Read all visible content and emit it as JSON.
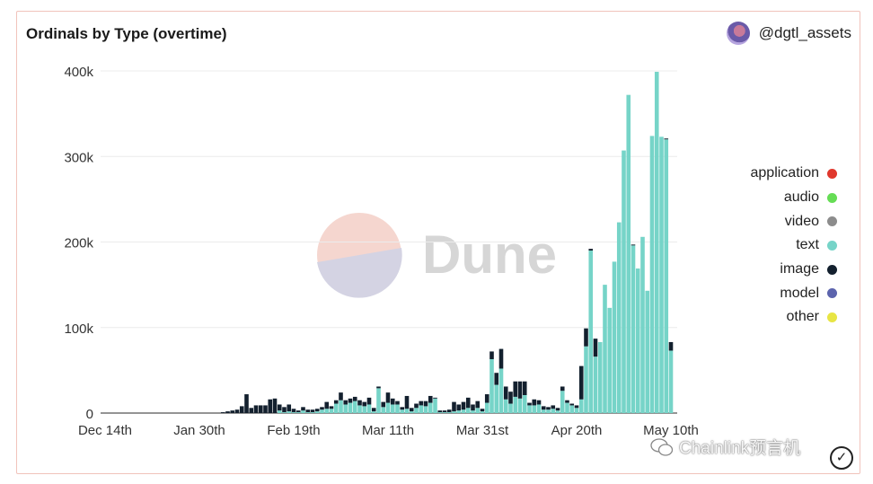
{
  "header": {
    "title": "Ordinals by Type (overtime)",
    "author": "@dgtl_assets"
  },
  "watermark": {
    "dune": "Dune",
    "source": "Chainlink预言机"
  },
  "colors": {
    "application": "#e0382d",
    "audio": "#66dd55",
    "video": "#8c8c8c",
    "text": "#76d4c8",
    "image": "#13202e",
    "model": "#5c64ad",
    "other": "#e8e544",
    "border": "#f1c3bb"
  },
  "chart_data": {
    "type": "bar",
    "stacked": true,
    "title": "Ordinals by Type (overtime)",
    "ylim": [
      0,
      400000
    ],
    "yticks": [
      {
        "value": 0,
        "label": "0"
      },
      {
        "value": 100000,
        "label": "100k"
      },
      {
        "value": 200000,
        "label": "200k"
      },
      {
        "value": 300000,
        "label": "300k"
      },
      {
        "value": 400000,
        "label": "400k"
      }
    ],
    "xticks": [
      {
        "index": 0,
        "label": "Dec 14th"
      },
      {
        "index": 20,
        "label": "Jan 30th"
      },
      {
        "index": 40,
        "label": "Feb 19th"
      },
      {
        "index": 60,
        "label": "Mar 11th"
      },
      {
        "index": 80,
        "label": "Mar 31st"
      },
      {
        "index": 100,
        "label": "Apr 20th"
      },
      {
        "index": 120,
        "label": "May 10th"
      }
    ],
    "legend": {
      "position": "right",
      "entries": [
        "application",
        "audio",
        "video",
        "text",
        "image",
        "model",
        "other"
      ]
    },
    "units": "thousands",
    "series": [
      {
        "name": "text",
        "values": [
          0,
          0,
          0,
          0,
          0,
          0,
          0,
          0,
          0,
          0,
          0,
          0,
          0,
          0,
          0,
          0,
          0,
          0,
          0,
          0,
          0,
          0,
          0,
          0,
          0,
          0,
          0,
          0,
          0,
          0,
          0,
          0,
          0,
          0,
          0,
          0,
          0,
          3,
          1,
          2,
          1,
          1,
          3,
          1,
          1,
          2,
          4,
          5,
          5,
          11,
          15,
          10,
          12,
          14,
          9,
          8,
          10,
          2,
          29,
          7,
          12,
          10,
          10,
          4,
          5,
          2,
          6,
          9,
          8,
          12,
          17,
          1,
          1,
          1,
          2,
          3,
          4,
          6,
          3,
          6,
          2,
          12,
          63,
          33,
          52,
          16,
          11,
          19,
          17,
          21,
          9,
          9,
          10,
          4,
          4,
          5,
          3,
          26,
          12,
          9,
          6,
          16,
          78,
          190,
          66,
          83,
          150,
          123,
          177,
          223,
          307,
          372,
          196,
          169,
          206,
          143,
          324,
          399,
          323,
          320,
          73
        ]
      },
      {
        "name": "image",
        "values": [
          0,
          0,
          0,
          0,
          0,
          0,
          0,
          0,
          0,
          0,
          0,
          0,
          0,
          0,
          0,
          0,
          0,
          0,
          0,
          0,
          0,
          0,
          0,
          0,
          0,
          1,
          2,
          3,
          4,
          8,
          22,
          6,
          9,
          9,
          9,
          16,
          17,
          7,
          6,
          8,
          4,
          2,
          4,
          3,
          3,
          3,
          3,
          8,
          3,
          4,
          9,
          5,
          5,
          5,
          6,
          5,
          8,
          4,
          2,
          6,
          12,
          7,
          4,
          3,
          15,
          4,
          5,
          5,
          6,
          8,
          1,
          2,
          2,
          3,
          11,
          7,
          9,
          12,
          7,
          8,
          3,
          10,
          9,
          14,
          23,
          15,
          14,
          18,
          20,
          16,
          3,
          7,
          5,
          4,
          3,
          4,
          3,
          5,
          3,
          2,
          3,
          39,
          21,
          2,
          21,
          0,
          0,
          0,
          0,
          0,
          0,
          0,
          1,
          0,
          0,
          0,
          0,
          0,
          0,
          1,
          10
        ]
      }
    ]
  }
}
